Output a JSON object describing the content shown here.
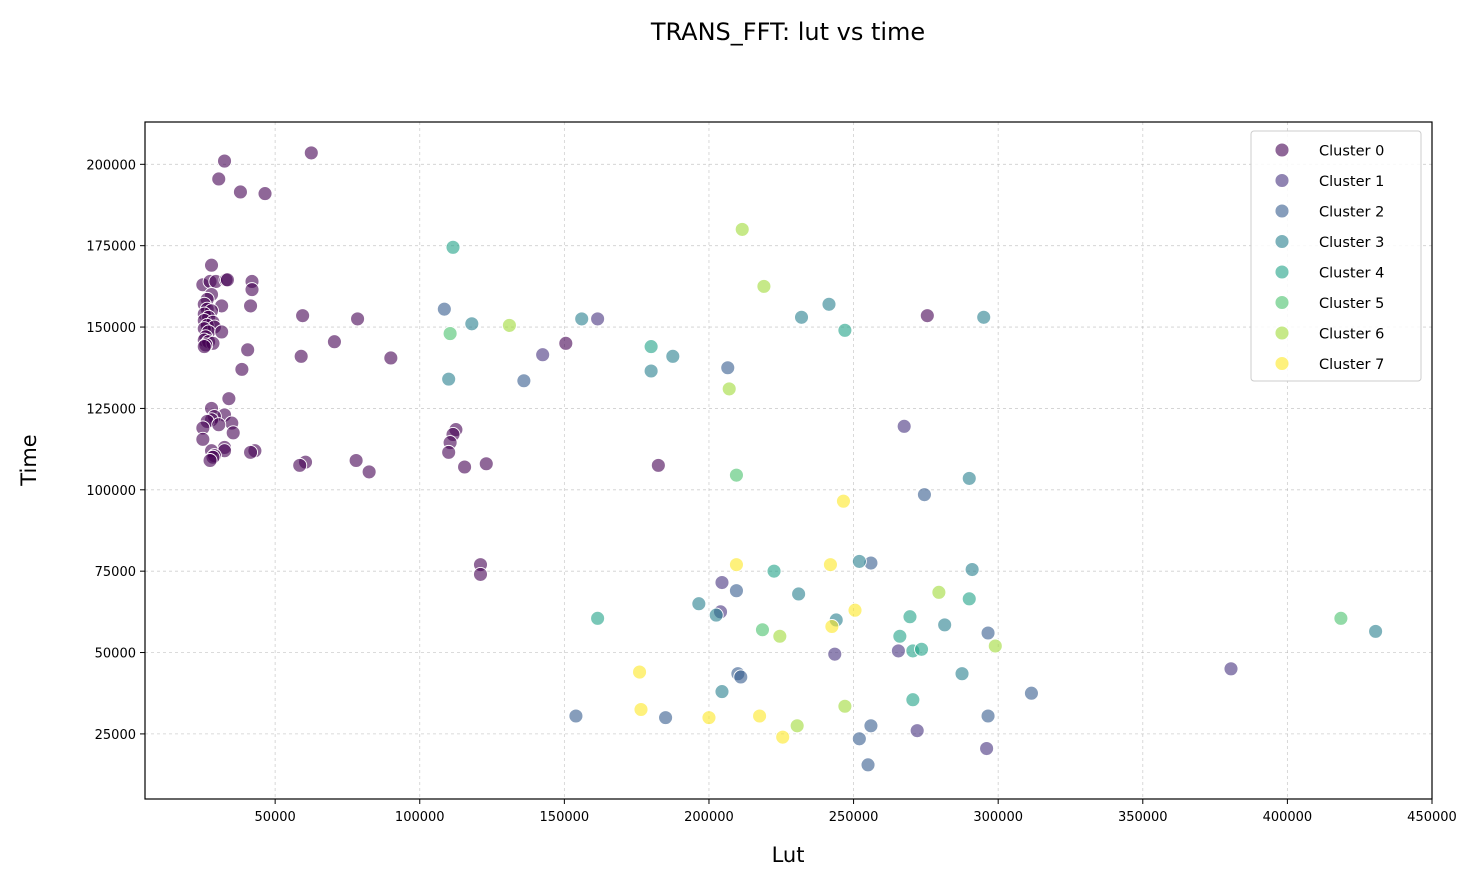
{
  "chart_data": {
    "type": "scatter",
    "title": "TRANS_FFT: lut vs time",
    "xlabel": "Lut",
    "ylabel": "Time",
    "xlim": [
      5000,
      450000
    ],
    "ylim": [
      5000,
      213000
    ],
    "xticks": [
      50000,
      100000,
      150000,
      200000,
      250000,
      300000,
      350000,
      400000,
      450000
    ],
    "yticks": [
      25000,
      50000,
      75000,
      100000,
      125000,
      150000,
      175000,
      200000
    ],
    "grid": true,
    "legend_position": "top-right",
    "series": [
      {
        "name": "Cluster 0",
        "color": "#440154",
        "points": [
          [
            32500,
            201000
          ],
          [
            30500,
            195500
          ],
          [
            38000,
            191500
          ],
          [
            46500,
            191000
          ],
          [
            62500,
            203500
          ],
          [
            28000,
            169000
          ],
          [
            25000,
            163000
          ],
          [
            27500,
            164000
          ],
          [
            29500,
            164000
          ],
          [
            33000,
            164500
          ],
          [
            33500,
            164500
          ],
          [
            42000,
            164000
          ],
          [
            42000,
            161500
          ],
          [
            28000,
            160000
          ],
          [
            26500,
            158500
          ],
          [
            31500,
            156500
          ],
          [
            41500,
            156500
          ],
          [
            25500,
            157000
          ],
          [
            26500,
            155500
          ],
          [
            28000,
            155000
          ],
          [
            25500,
            154000
          ],
          [
            27000,
            153000
          ],
          [
            25500,
            152000
          ],
          [
            28500,
            151500
          ],
          [
            26500,
            150500
          ],
          [
            29000,
            150000
          ],
          [
            25500,
            149500
          ],
          [
            27000,
            148500
          ],
          [
            31500,
            148500
          ],
          [
            26000,
            147000
          ],
          [
            25500,
            146000
          ],
          [
            27000,
            145500
          ],
          [
            28500,
            145000
          ],
          [
            26000,
            144500
          ],
          [
            25500,
            144000
          ],
          [
            59500,
            153500
          ],
          [
            78500,
            152500
          ],
          [
            70500,
            145500
          ],
          [
            40500,
            143000
          ],
          [
            59000,
            141000
          ],
          [
            90000,
            140500
          ],
          [
            38500,
            137000
          ],
          [
            34000,
            128000
          ],
          [
            28000,
            125000
          ],
          [
            32500,
            123000
          ],
          [
            29000,
            122500
          ],
          [
            28000,
            121500
          ],
          [
            26500,
            121000
          ],
          [
            35000,
            120500
          ],
          [
            30500,
            120000
          ],
          [
            25000,
            119000
          ],
          [
            35500,
            117500
          ],
          [
            25000,
            115500
          ],
          [
            32500,
            113000
          ],
          [
            28000,
            112000
          ],
          [
            32500,
            112000
          ],
          [
            43000,
            112000
          ],
          [
            41500,
            111500
          ],
          [
            29000,
            110500
          ],
          [
            28500,
            110000
          ],
          [
            27500,
            109000
          ],
          [
            60500,
            108500
          ],
          [
            58500,
            107500
          ],
          [
            78000,
            109000
          ],
          [
            82500,
            105500
          ],
          [
            112500,
            118500
          ],
          [
            111500,
            117000
          ],
          [
            110500,
            114500
          ],
          [
            110000,
            111500
          ],
          [
            115500,
            107000
          ],
          [
            123000,
            108000
          ],
          [
            150500,
            145000
          ],
          [
            182500,
            107500
          ],
          [
            121000,
            77000
          ],
          [
            121000,
            74000
          ],
          [
            275500,
            153500
          ]
        ]
      },
      {
        "name": "Cluster 1",
        "color": "#46327e",
        "points": [
          [
            161500,
            152500
          ],
          [
            142500,
            141500
          ],
          [
            267500,
            119500
          ],
          [
            204500,
            71500
          ],
          [
            204000,
            62500
          ],
          [
            243500,
            49500
          ],
          [
            265500,
            50500
          ],
          [
            380500,
            45000
          ],
          [
            272000,
            26000
          ],
          [
            296000,
            20500
          ]
        ]
      },
      {
        "name": "Cluster 2",
        "color": "#365c8d",
        "points": [
          [
            108500,
            155500
          ],
          [
            136000,
            133500
          ],
          [
            206500,
            137500
          ],
          [
            274500,
            98500
          ],
          [
            256000,
            77500
          ],
          [
            209500,
            69000
          ],
          [
            296500,
            56000
          ],
          [
            210000,
            43500
          ],
          [
            211000,
            42500
          ],
          [
            311500,
            37500
          ],
          [
            154000,
            30500
          ],
          [
            185000,
            30000
          ],
          [
            296500,
            30500
          ],
          [
            256000,
            27500
          ],
          [
            252000,
            23500
          ],
          [
            255000,
            15500
          ]
        ]
      },
      {
        "name": "Cluster 3",
        "color": "#277f8e",
        "points": [
          [
            118000,
            151000
          ],
          [
            156000,
            152500
          ],
          [
            110000,
            134000
          ],
          [
            187500,
            141000
          ],
          [
            180000,
            136500
          ],
          [
            232000,
            153000
          ],
          [
            241500,
            157000
          ],
          [
            295000,
            153000
          ],
          [
            290000,
            103500
          ],
          [
            252000,
            78000
          ],
          [
            291000,
            75500
          ],
          [
            196500,
            65000
          ],
          [
            231000,
            68000
          ],
          [
            202500,
            61500
          ],
          [
            244000,
            60000
          ],
          [
            281500,
            58500
          ],
          [
            287500,
            43500
          ],
          [
            204500,
            38000
          ],
          [
            430500,
            56500
          ]
        ]
      },
      {
        "name": "Cluster 4",
        "color": "#1fa187",
        "points": [
          [
            111500,
            174500
          ],
          [
            180000,
            144000
          ],
          [
            247000,
            149000
          ],
          [
            222500,
            75000
          ],
          [
            290000,
            66500
          ],
          [
            161500,
            60500
          ],
          [
            269500,
            61000
          ],
          [
            266000,
            55000
          ],
          [
            270500,
            50500
          ],
          [
            273500,
            51000
          ],
          [
            270500,
            35500
          ]
        ]
      },
      {
        "name": "Cluster 5",
        "color": "#4ac16d",
        "points": [
          [
            110500,
            148000
          ],
          [
            209500,
            104500
          ],
          [
            218500,
            57000
          ],
          [
            418500,
            60500
          ]
        ]
      },
      {
        "name": "Cluster 6",
        "color": "#a0da39",
        "points": [
          [
            211500,
            180000
          ],
          [
            219000,
            162500
          ],
          [
            131000,
            150500
          ],
          [
            207000,
            131000
          ],
          [
            279500,
            68500
          ],
          [
            224500,
            55000
          ],
          [
            299000,
            52000
          ],
          [
            247000,
            33500
          ],
          [
            230500,
            27500
          ]
        ]
      },
      {
        "name": "Cluster 7",
        "color": "#fde725",
        "points": [
          [
            246500,
            96500
          ],
          [
            209500,
            77000
          ],
          [
            242000,
            77000
          ],
          [
            250500,
            63000
          ],
          [
            242500,
            58000
          ],
          [
            176000,
            44000
          ],
          [
            176500,
            32500
          ],
          [
            200000,
            30000
          ],
          [
            217500,
            30500
          ],
          [
            225500,
            24000
          ]
        ]
      }
    ]
  }
}
